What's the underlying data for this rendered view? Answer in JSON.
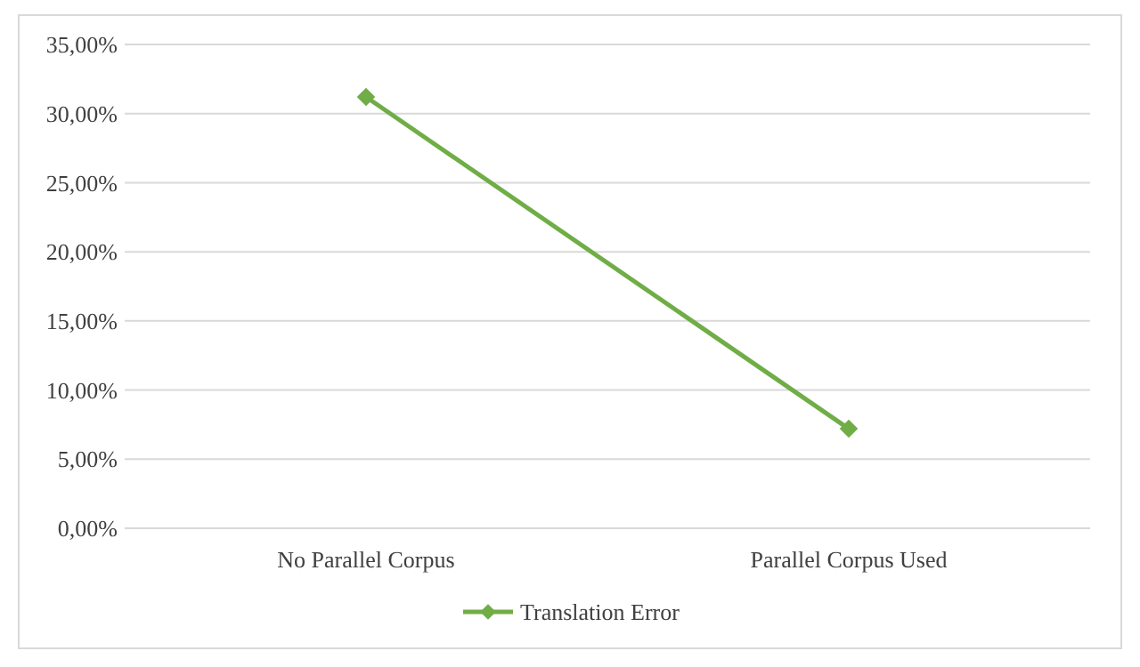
{
  "chart_data": {
    "type": "line",
    "categories": [
      "No Parallel Corpus",
      "Parallel Corpus Used"
    ],
    "series": [
      {
        "name": "Translation Error",
        "color": "#70ad47",
        "values": [
          31.2,
          7.2
        ]
      }
    ],
    "ylim": [
      0,
      35
    ],
    "yticks": [
      {
        "value": 0,
        "label": "0,00%"
      },
      {
        "value": 5,
        "label": "5,00%"
      },
      {
        "value": 10,
        "label": "10,00%"
      },
      {
        "value": 15,
        "label": "15,00%"
      },
      {
        "value": 20,
        "label": "20,00%"
      },
      {
        "value": 25,
        "label": "25,00%"
      },
      {
        "value": 30,
        "label": "30,00%"
      },
      {
        "value": 35,
        "label": "35,00%"
      }
    ],
    "grid": "y",
    "legend": "bottom",
    "marker": "diamond",
    "line_style": "solid"
  }
}
